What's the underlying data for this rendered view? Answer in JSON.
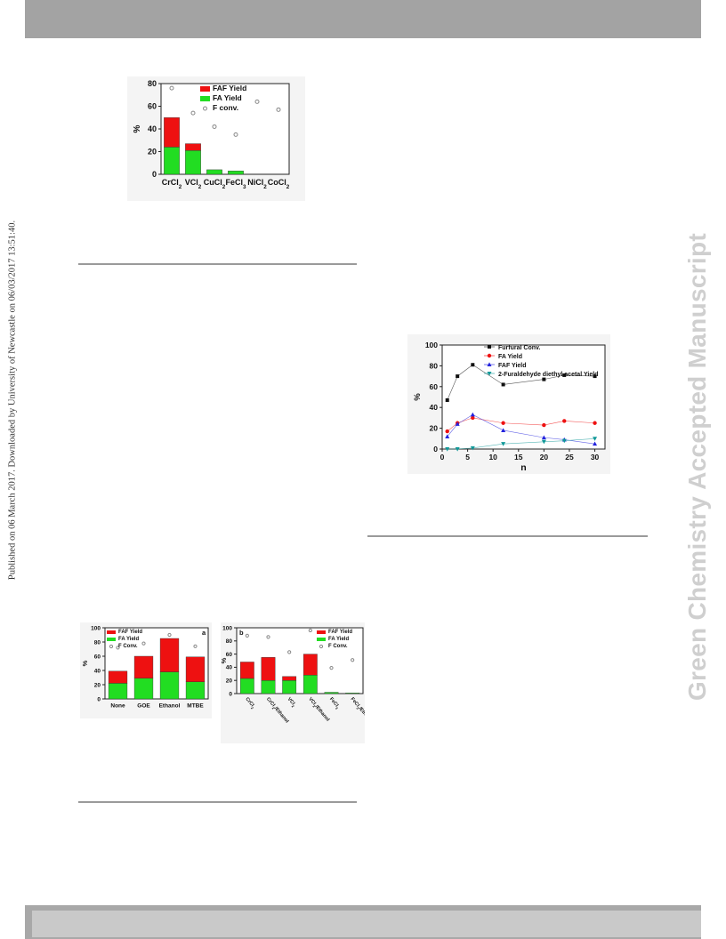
{
  "sidebar": {
    "published_note": "Published on 06 March 2017. Downloaded by University of Newcastle on 06/03/2017 13:51:40.",
    "watermark": "Green Chemistry Accepted Manuscript"
  },
  "colors": {
    "red": "#ee1111",
    "green": "#22dd22",
    "circle": "#888888",
    "black": "#111111",
    "blue": "#2222dd",
    "teal": "#119999"
  },
  "chart_data": [
    {
      "type": "bar",
      "stacked": true,
      "categories": [
        "CrCl2",
        "VCl2",
        "CuCl2",
        "FeCl3",
        "NiCl2",
        "CoCl2"
      ],
      "series": [
        {
          "name": "FA Yield",
          "values": [
            24,
            21,
            4,
            3,
            0,
            0
          ]
        },
        {
          "name": "FAF Yield",
          "values": [
            26,
            6,
            0,
            0,
            0,
            0
          ]
        }
      ],
      "scatter": {
        "name": "F conv.",
        "values": [
          76,
          54,
          42,
          35,
          64,
          57
        ]
      },
      "ylabel": "%",
      "yticks": [
        "0",
        "20",
        "40",
        "60",
        "80"
      ],
      "ylim": [
        0,
        80
      ],
      "legend": [
        "FAF Yield",
        "FA Yield",
        "F conv."
      ],
      "legend_position": "top-right"
    },
    {
      "type": "line",
      "x": [
        1,
        3,
        6,
        12,
        20,
        24,
        30
      ],
      "series": [
        {
          "name": "Furfural Conv.",
          "values": [
            47,
            70,
            81,
            62,
            67,
            71,
            70
          ]
        },
        {
          "name": "FA Yield",
          "values": [
            17,
            25,
            30,
            25,
            23,
            27,
            25
          ]
        },
        {
          "name": "FAF Yield",
          "values": [
            12,
            24,
            33,
            18,
            11,
            9,
            5
          ]
        },
        {
          "name": "2-Furaldehyde diethyl acetal Yield",
          "values": [
            0,
            0,
            1,
            5,
            7,
            8,
            10
          ]
        }
      ],
      "xlabel": "n",
      "ylabel": "%",
      "xticks": [
        "0",
        "5",
        "10",
        "15",
        "20",
        "25",
        "30"
      ],
      "yticks": [
        "0",
        "20",
        "40",
        "60",
        "80",
        "100"
      ],
      "xlim": [
        0,
        32
      ],
      "ylim": [
        0,
        100
      ],
      "legend_position": "top-right"
    },
    {
      "type": "bar",
      "stacked": true,
      "panel_label": "a",
      "categories": [
        "None",
        "GOE",
        "Ethanol",
        "MTBE"
      ],
      "series": [
        {
          "name": "FA Yield",
          "values": [
            22,
            29,
            38,
            24
          ]
        },
        {
          "name": "FAF Yield",
          "values": [
            17,
            31,
            47,
            35
          ]
        }
      ],
      "scatter": {
        "name": "F Conv.",
        "values": [
          72,
          78,
          90,
          74
        ]
      },
      "ylabel": "%",
      "yticks": [
        "0",
        "20",
        "40",
        "60",
        "80",
        "100"
      ],
      "ylim": [
        0,
        100
      ],
      "legend": [
        "FAF Yield",
        "FA Yield",
        "F Conv."
      ],
      "legend_position": "top-left"
    },
    {
      "type": "bar",
      "stacked": true,
      "panel_label": "b",
      "categories": [
        "CrCl2",
        "CrCl2/Ethanol",
        "VCl2",
        "VCl2/Ethanol",
        "FeCl3",
        "FeCl3/Ethanol"
      ],
      "series": [
        {
          "name": "FA Yield",
          "values": [
            23,
            20,
            20,
            28,
            2,
            1
          ]
        },
        {
          "name": "FAF Yield",
          "values": [
            25,
            35,
            6,
            32,
            0,
            0
          ]
        }
      ],
      "scatter": {
        "name": "F Conv.",
        "values": [
          88,
          86,
          63,
          96,
          39,
          51
        ]
      },
      "ylabel": "%",
      "yticks": [
        "0",
        "20",
        "40",
        "60",
        "80",
        "100"
      ],
      "ylim": [
        0,
        100
      ],
      "legend": [
        "FAF Yield",
        "FA Yield",
        "F Conv."
      ],
      "legend_position": "top-right"
    }
  ]
}
